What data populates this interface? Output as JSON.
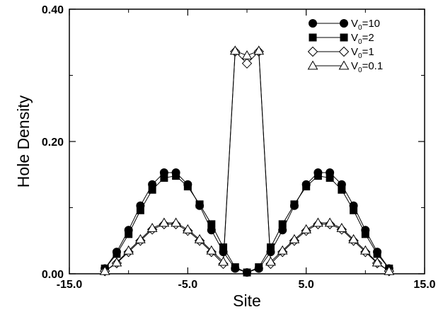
{
  "chart_data": {
    "type": "line",
    "title": "",
    "xlabel": "Site",
    "ylabel": "Hole Density",
    "xlim": [
      -15,
      15
    ],
    "ylim": [
      0,
      0.4
    ],
    "grid": false,
    "legend_position": "top-right",
    "x_ticks": [
      "-15.0",
      "-5.0",
      "5.0",
      "15.0"
    ],
    "y_ticks": [
      "0.00",
      "0.20",
      "0.40"
    ],
    "x": [
      -12,
      -11,
      -10,
      -9,
      -8,
      -7,
      -6,
      -5,
      -4,
      -3,
      -2,
      -1,
      0,
      1,
      2,
      3,
      4,
      5,
      6,
      7,
      8,
      9,
      10,
      11,
      12
    ],
    "series": [
      {
        "name": "V",
        "subscript": "0",
        "suffix": "=10",
        "marker": "circle-filled",
        "values": [
          0.008,
          0.033,
          0.066,
          0.103,
          0.135,
          0.153,
          0.153,
          0.135,
          0.103,
          0.066,
          0.033,
          0.008,
          0.002,
          0.008,
          0.033,
          0.066,
          0.103,
          0.135,
          0.153,
          0.153,
          0.135,
          0.103,
          0.066,
          0.033,
          0.008
        ]
      },
      {
        "name": "V",
        "subscript": "0",
        "suffix": "=2",
        "marker": "square-filled",
        "values": [
          0.008,
          0.03,
          0.06,
          0.096,
          0.127,
          0.145,
          0.148,
          0.132,
          0.105,
          0.075,
          0.04,
          0.01,
          0.002,
          0.01,
          0.04,
          0.075,
          0.105,
          0.132,
          0.148,
          0.145,
          0.127,
          0.096,
          0.06,
          0.03,
          0.008
        ]
      },
      {
        "name": "V",
        "subscript": "0",
        "suffix": "=1",
        "marker": "diamond-open",
        "values": [
          0.004,
          0.016,
          0.033,
          0.05,
          0.067,
          0.075,
          0.075,
          0.065,
          0.05,
          0.033,
          0.015,
          0.336,
          0.318,
          0.336,
          0.015,
          0.033,
          0.05,
          0.065,
          0.075,
          0.075,
          0.067,
          0.05,
          0.033,
          0.016,
          0.004
        ]
      },
      {
        "name": "V",
        "subscript": "0",
        "suffix": "=0.1",
        "marker": "triangle-open",
        "values": [
          0.004,
          0.017,
          0.035,
          0.052,
          0.069,
          0.077,
          0.077,
          0.067,
          0.052,
          0.035,
          0.018,
          0.337,
          0.33,
          0.337,
          0.018,
          0.035,
          0.052,
          0.067,
          0.077,
          0.077,
          0.069,
          0.052,
          0.035,
          0.017,
          0.004
        ]
      }
    ]
  }
}
